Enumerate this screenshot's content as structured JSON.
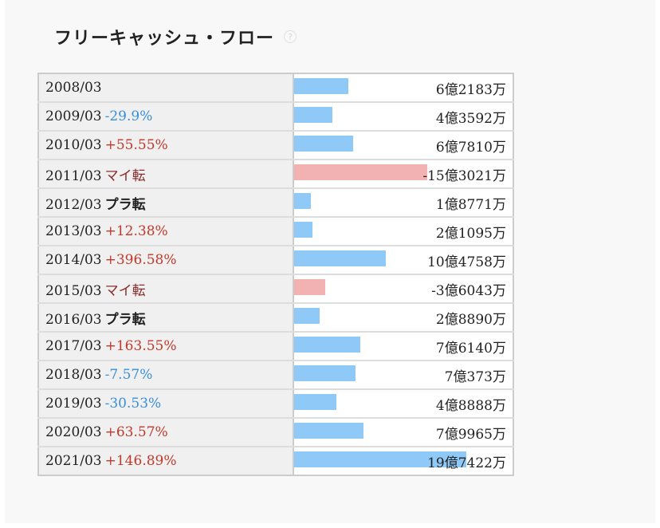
{
  "title": "フリーキャッシュ・フロー",
  "help_icon": "question-circle-icon",
  "colors": {
    "positive_bar": "#8ec9f7",
    "negative_bar": "#f2b2b2",
    "increase": "#c0392b",
    "decrease": "#3a8fd8"
  },
  "chart_data": {
    "type": "bar",
    "orientation": "horizontal",
    "unit": "円",
    "rows": [
      {
        "year": "2008/03",
        "change": "",
        "change_type": "",
        "value": 621830000,
        "value_label": "6億2183万"
      },
      {
        "year": "2009/03",
        "change": "-29.9%",
        "change_type": "neg",
        "value": 435920000,
        "value_label": "4億3592万"
      },
      {
        "year": "2010/03",
        "change": "+55.55%",
        "change_type": "pos",
        "value": 678100000,
        "value_label": "6億7810万"
      },
      {
        "year": "2011/03",
        "change": "マイ転",
        "change_type": "mai",
        "value": -1530210000,
        "value_label": "-15億3021万"
      },
      {
        "year": "2012/03",
        "change": "プラ転",
        "change_type": "pura",
        "value": 187710000,
        "value_label": "1億8771万"
      },
      {
        "year": "2013/03",
        "change": "+12.38%",
        "change_type": "pos",
        "value": 210950000,
        "value_label": "2億1095万"
      },
      {
        "year": "2014/03",
        "change": "+396.58%",
        "change_type": "pos",
        "value": 1047580000,
        "value_label": "10億4758万"
      },
      {
        "year": "2015/03",
        "change": "マイ転",
        "change_type": "mai",
        "value": -360430000,
        "value_label": "-3億6043万"
      },
      {
        "year": "2016/03",
        "change": "プラ転",
        "change_type": "pura",
        "value": 288890000,
        "value_label": "2億8890万"
      },
      {
        "year": "2017/03",
        "change": "+163.55%",
        "change_type": "pos",
        "value": 761400000,
        "value_label": "7億6140万"
      },
      {
        "year": "2018/03",
        "change": "-7.57%",
        "change_type": "neg",
        "value": 703730000,
        "value_label": "7億373万"
      },
      {
        "year": "2019/03",
        "change": "-30.53%",
        "change_type": "neg",
        "value": 488880000,
        "value_label": "4億8888万"
      },
      {
        "year": "2020/03",
        "change": "+63.57%",
        "change_type": "pos",
        "value": 799650000,
        "value_label": "7億9965万"
      },
      {
        "year": "2021/03",
        "change": "+146.89%",
        "change_type": "pos",
        "value": 1974220000,
        "value_label": "19億7422万"
      }
    ]
  }
}
